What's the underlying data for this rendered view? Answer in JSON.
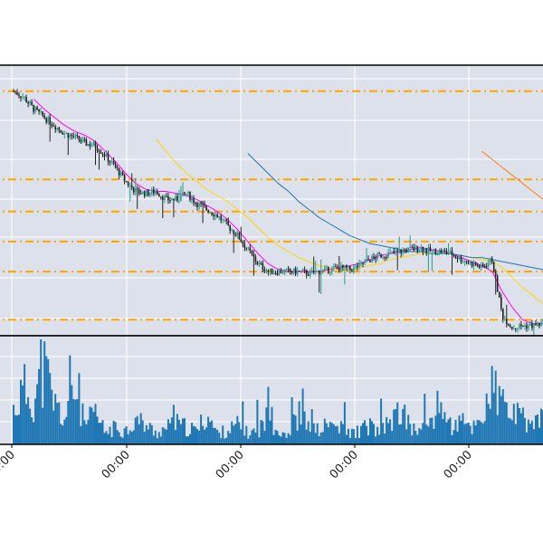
{
  "chart_data": {
    "type": "candlestick",
    "x_tick_labels": [
      "00:00",
      "00:00",
      "00:00",
      "00:00",
      "00:00"
    ],
    "candle_count": 292,
    "price_axis_visible": false,
    "volume_axis_visible": false,
    "grid": true,
    "colors": {
      "panel_background": "#dde1ec",
      "grid": "#ffffff",
      "candle_up": "#2a9d8f",
      "candle_down": "#222222",
      "volume_bar": "#1f77b4",
      "support_resistance": "#ffa500",
      "ma_short": "#ff00ff",
      "ma_mid": "#ffd700",
      "ma_long": "#1f77b4",
      "ma_longer": "#ff7f0e"
    },
    "reference_levels": [
      0.06,
      0.3,
      0.45,
      0.6,
      0.76,
      1.2
    ],
    "close_series": [
      1.2,
      1.17,
      1.11,
      1.07,
      1.03,
      0.99,
      0.97,
      0.94,
      0.93,
      0.88,
      0.82,
      0.75,
      0.7,
      0.69,
      0.7,
      0.66,
      0.66,
      0.69,
      0.64,
      0.61,
      0.58,
      0.53,
      0.48,
      0.41,
      0.34,
      0.3,
      0.3,
      0.3,
      0.3,
      0.29,
      0.3,
      0.31,
      0.32,
      0.31,
      0.33,
      0.36,
      0.38,
      0.39,
      0.4,
      0.41,
      0.42,
      0.4,
      0.4,
      0.39,
      0.36,
      0.34,
      0.32,
      0.36,
      0.08,
      0.02,
      0.03,
      0.03,
      0.04
    ],
    "volume_series": [
      25,
      40,
      33,
      55,
      30,
      18,
      42,
      14,
      22,
      9,
      12,
      10,
      18,
      14,
      8,
      12,
      15,
      12,
      10,
      22,
      8,
      10,
      14,
      8,
      10,
      20,
      10,
      8,
      22,
      12,
      10,
      15,
      12,
      8,
      10,
      14,
      8,
      18,
      22,
      12,
      10,
      18,
      30,
      12,
      16,
      12,
      20,
      40,
      30,
      22,
      18,
      15,
      20
    ],
    "moving_averages": [
      {
        "values": [
          null,
          null,
          1.16,
          1.11,
          1.07,
          1.03,
          1.0,
          0.98,
          0.95,
          0.9,
          0.85,
          0.79,
          0.74,
          0.71,
          0.7,
          0.7,
          0.69,
          0.68,
          0.66,
          0.63,
          0.6,
          0.56,
          0.51,
          0.45,
          0.39,
          0.34,
          0.31,
          0.3,
          0.3,
          0.3,
          0.3,
          0.31,
          0.32,
          0.33,
          0.34,
          0.36,
          0.38,
          0.39,
          0.4,
          0.41,
          0.42,
          0.41,
          0.4,
          0.39,
          0.37,
          0.35,
          0.33,
          0.3,
          0.2,
          0.12,
          0.06,
          0.04,
          0.04
        ]
      },
      {
        "values": [
          null,
          null,
          null,
          null,
          null,
          null,
          null,
          null,
          null,
          null,
          null,
          null,
          null,
          null,
          0.96,
          0.9,
          0.84,
          0.79,
          0.75,
          0.71,
          0.68,
          0.65,
          0.61,
          0.57,
          0.52,
          0.47,
          0.43,
          0.4,
          0.37,
          0.35,
          0.33,
          0.32,
          0.31,
          0.31,
          0.32,
          0.33,
          0.34,
          0.36,
          0.37,
          0.38,
          0.39,
          0.39,
          0.39,
          0.39,
          0.38,
          0.37,
          0.36,
          0.35,
          0.32,
          0.27,
          0.22,
          0.18,
          0.14
        ]
      },
      {
        "values": [
          null,
          null,
          null,
          null,
          null,
          null,
          null,
          null,
          null,
          null,
          null,
          null,
          null,
          null,
          null,
          null,
          null,
          null,
          null,
          null,
          null,
          null,
          null,
          0.89,
          0.84,
          0.79,
          0.74,
          0.7,
          0.65,
          0.61,
          0.57,
          0.54,
          0.51,
          0.48,
          0.46,
          0.44,
          0.43,
          0.42,
          0.41,
          0.4,
          0.4,
          0.39,
          0.39,
          0.39,
          0.38,
          0.37,
          0.37,
          0.36,
          0.35,
          0.34,
          0.33,
          0.32,
          0.31
        ]
      },
      {
        "values": [
          null,
          null,
          null,
          null,
          null,
          null,
          null,
          null,
          null,
          null,
          null,
          null,
          null,
          null,
          null,
          null,
          null,
          null,
          null,
          null,
          null,
          null,
          null,
          null,
          null,
          null,
          null,
          null,
          null,
          null,
          null,
          null,
          null,
          null,
          null,
          null,
          null,
          null,
          null,
          null,
          null,
          null,
          null,
          null,
          null,
          null,
          0.9,
          0.86,
          0.82,
          0.78,
          0.74,
          0.7,
          0.66
        ]
      }
    ]
  }
}
